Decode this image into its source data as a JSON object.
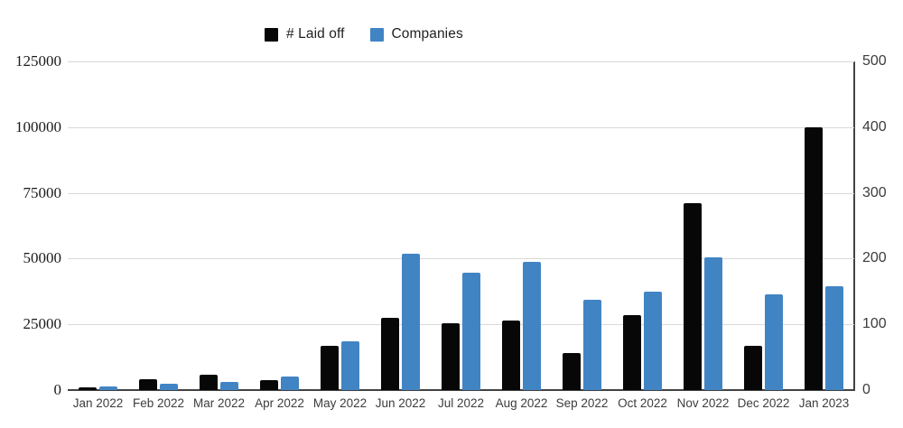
{
  "legend": {
    "items": [
      {
        "label": "# Laid off",
        "color": "#070707",
        "icon": "black-square-swatch"
      },
      {
        "label": "Companies",
        "color": "#4184c4",
        "icon": "blue-square-swatch"
      }
    ]
  },
  "colors": {
    "laid_off_bar": "#070707",
    "companies_bar": "#4184c4",
    "gridline": "#d9d9d9",
    "axis_line": "#424242",
    "axis_text": "#3c3c3c"
  },
  "chart_data": {
    "type": "bar",
    "title": "",
    "xlabel": "",
    "ylabel_left": "",
    "ylabel_right": "",
    "grid": true,
    "legend_position": "top",
    "categories": [
      "Jan 2022",
      "Feb 2022",
      "Mar 2022",
      "Apr 2022",
      "May 2022",
      "Jun 2022",
      "Jul 2022",
      "Aug 2022",
      "Sep 2022",
      "Oct 2022",
      "Nov 2022",
      "Dec 2022",
      "Jan 2023"
    ],
    "series": [
      {
        "name": "# Laid off",
        "axis": "left",
        "color": "#070707",
        "values": [
          1000,
          4000,
          6000,
          3800,
          17000,
          27500,
          25500,
          26500,
          14000,
          28500,
          71000,
          17000,
          100000
        ]
      },
      {
        "name": "Companies",
        "axis": "right",
        "color": "#4184c4",
        "values": [
          5,
          10,
          12,
          21,
          74,
          208,
          178,
          195,
          138,
          150,
          202,
          145,
          158
        ]
      }
    ],
    "left_axis": {
      "range": [
        0,
        125000
      ],
      "ticks": [
        0,
        25000,
        50000,
        75000,
        100000,
        125000
      ],
      "tick_labels": [
        "0",
        "25000",
        "50000",
        "75000",
        "100000",
        "125000"
      ]
    },
    "right_axis": {
      "range": [
        0,
        500
      ],
      "ticks": [
        0,
        100,
        200,
        300,
        400,
        500
      ],
      "tick_labels": [
        "0",
        "100",
        "200",
        "300",
        "400",
        "500"
      ]
    }
  }
}
